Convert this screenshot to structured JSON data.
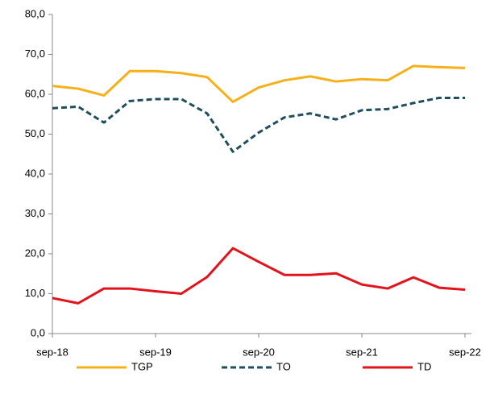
{
  "chart_data": {
    "type": "line",
    "categories": [
      "sep-18",
      null,
      null,
      null,
      "sep-19",
      null,
      null,
      null,
      "sep-20",
      null,
      null,
      null,
      "sep-21",
      null,
      null,
      null,
      "sep-22"
    ],
    "series": [
      {
        "name": "TGP",
        "color": "#f5b01a",
        "dashed": false,
        "values": [
          62.1,
          61.4,
          59.7,
          65.8,
          65.8,
          65.3,
          64.3,
          58.1,
          61.7,
          63.5,
          64.5,
          63.2,
          63.8,
          63.5,
          67.1,
          66.8,
          66.6
        ]
      },
      {
        "name": "TO",
        "color": "#1f4e5f",
        "dashed": true,
        "values": [
          56.5,
          56.9,
          52.9,
          58.3,
          58.8,
          58.8,
          55.2,
          45.6,
          50.4,
          54.2,
          55.2,
          53.7,
          56.0,
          56.3,
          57.8,
          59.1,
          59.1
        ]
      },
      {
        "name": "TD",
        "color": "#e3121b",
        "dashed": false,
        "values": [
          8.9,
          7.6,
          11.3,
          11.3,
          10.6,
          10.0,
          14.2,
          21.4,
          18.0,
          14.7,
          14.7,
          15.1,
          12.3,
          11.3,
          14.1,
          11.5,
          11.0
        ]
      }
    ],
    "ylim": [
      0,
      80
    ],
    "yticks": [
      {
        "value": 0,
        "label": "0,0"
      },
      {
        "value": 10,
        "label": "10,0"
      },
      {
        "value": 20,
        "label": "20,0"
      },
      {
        "value": 30,
        "label": "30,0"
      },
      {
        "value": 40,
        "label": "40,0"
      },
      {
        "value": 50,
        "label": "50,0"
      },
      {
        "value": 60,
        "label": "60,0"
      },
      {
        "value": 70,
        "label": "70,0"
      },
      {
        "value": 80,
        "label": "80,0"
      }
    ],
    "grid": false,
    "legend": "bottom"
  }
}
